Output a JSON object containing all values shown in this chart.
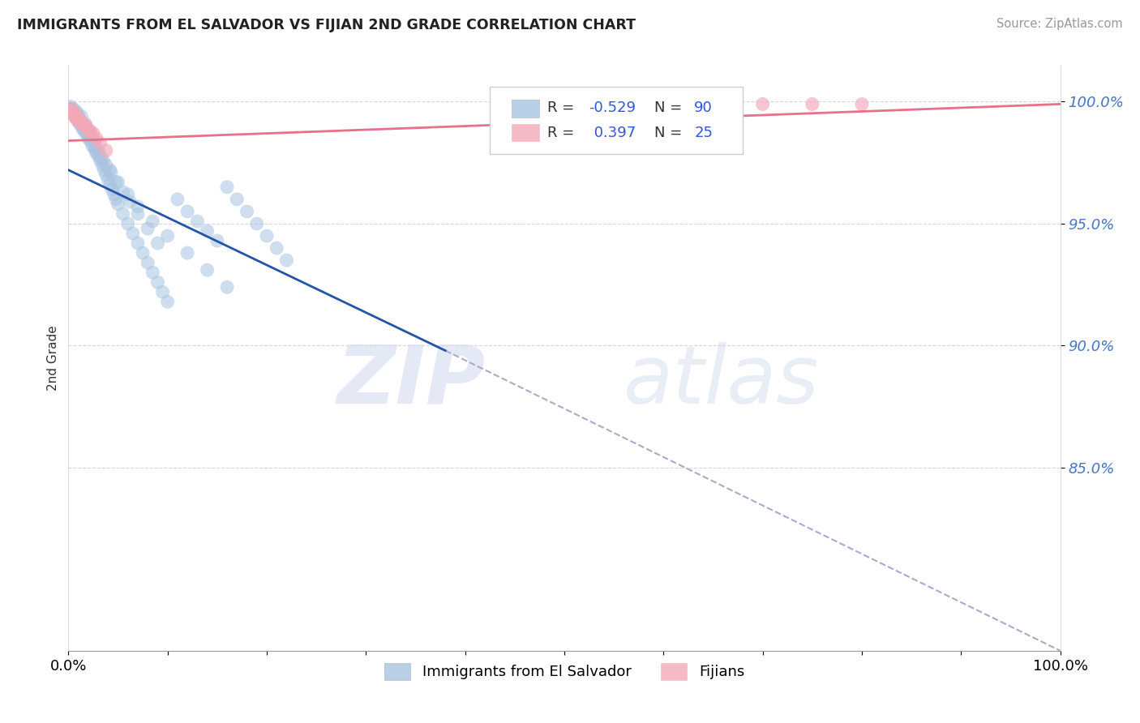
{
  "title": "IMMIGRANTS FROM EL SALVADOR VS FIJIAN 2ND GRADE CORRELATION CHART",
  "source": "Source: ZipAtlas.com",
  "ylabel": "2nd Grade",
  "legend_label1": "Immigrants from El Salvador",
  "legend_label2": "Fijians",
  "R1": "-0.529",
  "N1": "90",
  "R2": "0.397",
  "N2": "25",
  "blue_color": "#A8C4E0",
  "pink_color": "#F4A8B8",
  "blue_line_color": "#2255AA",
  "pink_line_color": "#E8708A",
  "blue_scatter_x": [
    0.002,
    0.003,
    0.004,
    0.005,
    0.006,
    0.007,
    0.008,
    0.009,
    0.01,
    0.011,
    0.012,
    0.013,
    0.014,
    0.016,
    0.017,
    0.018,
    0.02,
    0.022,
    0.024,
    0.026,
    0.008,
    0.01,
    0.012,
    0.014,
    0.016,
    0.018,
    0.02,
    0.022,
    0.024,
    0.026,
    0.028,
    0.03,
    0.032,
    0.034,
    0.036,
    0.038,
    0.04,
    0.042,
    0.044,
    0.046,
    0.048,
    0.05,
    0.055,
    0.06,
    0.065,
    0.07,
    0.075,
    0.08,
    0.085,
    0.09,
    0.095,
    0.1,
    0.11,
    0.12,
    0.13,
    0.14,
    0.15,
    0.16,
    0.17,
    0.18,
    0.19,
    0.2,
    0.21,
    0.22,
    0.003,
    0.005,
    0.007,
    0.009,
    0.011,
    0.015,
    0.019,
    0.023,
    0.027,
    0.031,
    0.035,
    0.042,
    0.05,
    0.06,
    0.07,
    0.085,
    0.1,
    0.12,
    0.14,
    0.16,
    0.028,
    0.033,
    0.038,
    0.043,
    0.048,
    0.055,
    0.062,
    0.07,
    0.08,
    0.09
  ],
  "blue_scatter_y": [
    0.998,
    0.997,
    0.996,
    0.997,
    0.995,
    0.994,
    0.996,
    0.995,
    0.994,
    0.993,
    0.992,
    0.994,
    0.991,
    0.99,
    0.991,
    0.989,
    0.988,
    0.987,
    0.985,
    0.984,
    0.993,
    0.992,
    0.991,
    0.989,
    0.988,
    0.987,
    0.985,
    0.984,
    0.982,
    0.981,
    0.979,
    0.978,
    0.976,
    0.974,
    0.972,
    0.97,
    0.968,
    0.966,
    0.964,
    0.962,
    0.96,
    0.958,
    0.954,
    0.95,
    0.946,
    0.942,
    0.938,
    0.934,
    0.93,
    0.926,
    0.922,
    0.918,
    0.96,
    0.955,
    0.951,
    0.947,
    0.943,
    0.965,
    0.96,
    0.955,
    0.95,
    0.945,
    0.94,
    0.935,
    0.997,
    0.996,
    0.994,
    0.993,
    0.991,
    0.989,
    0.987,
    0.985,
    0.982,
    0.979,
    0.976,
    0.972,
    0.967,
    0.962,
    0.957,
    0.951,
    0.945,
    0.938,
    0.931,
    0.924,
    0.98,
    0.977,
    0.974,
    0.971,
    0.967,
    0.963,
    0.959,
    0.954,
    0.948,
    0.942
  ],
  "pink_scatter_x": [
    0.002,
    0.004,
    0.006,
    0.008,
    0.01,
    0.003,
    0.005,
    0.008,
    0.011,
    0.014,
    0.017,
    0.02,
    0.012,
    0.015,
    0.018,
    0.022,
    0.025,
    0.028,
    0.032,
    0.038,
    0.6,
    0.65,
    0.7,
    0.75,
    0.8
  ],
  "pink_scatter_y": [
    0.996,
    0.995,
    0.994,
    0.993,
    0.992,
    0.997,
    0.996,
    0.994,
    0.993,
    0.991,
    0.99,
    0.988,
    0.992,
    0.991,
    0.99,
    0.988,
    0.987,
    0.985,
    0.983,
    0.98,
    0.999,
    0.999,
    0.999,
    0.999,
    0.999
  ],
  "blue_line_x0": 0.0,
  "blue_line_x1": 0.38,
  "blue_line_y0": 0.972,
  "blue_line_y1": 0.898,
  "dashed_line_x0": 0.38,
  "dashed_line_x1": 1.0,
  "dashed_line_y0": 0.898,
  "dashed_line_y1": 0.775,
  "pink_line_x0": 0.0,
  "pink_line_x1": 1.0,
  "pink_line_y0": 0.984,
  "pink_line_y1": 0.999,
  "xlim": [
    0.0,
    1.0
  ],
  "ylim": [
    0.775,
    1.015
  ],
  "yticks": [
    0.85,
    0.9,
    0.95,
    1.0
  ],
  "ytick_labels": [
    "85.0%",
    "90.0%",
    "95.0%",
    "100.0%"
  ]
}
